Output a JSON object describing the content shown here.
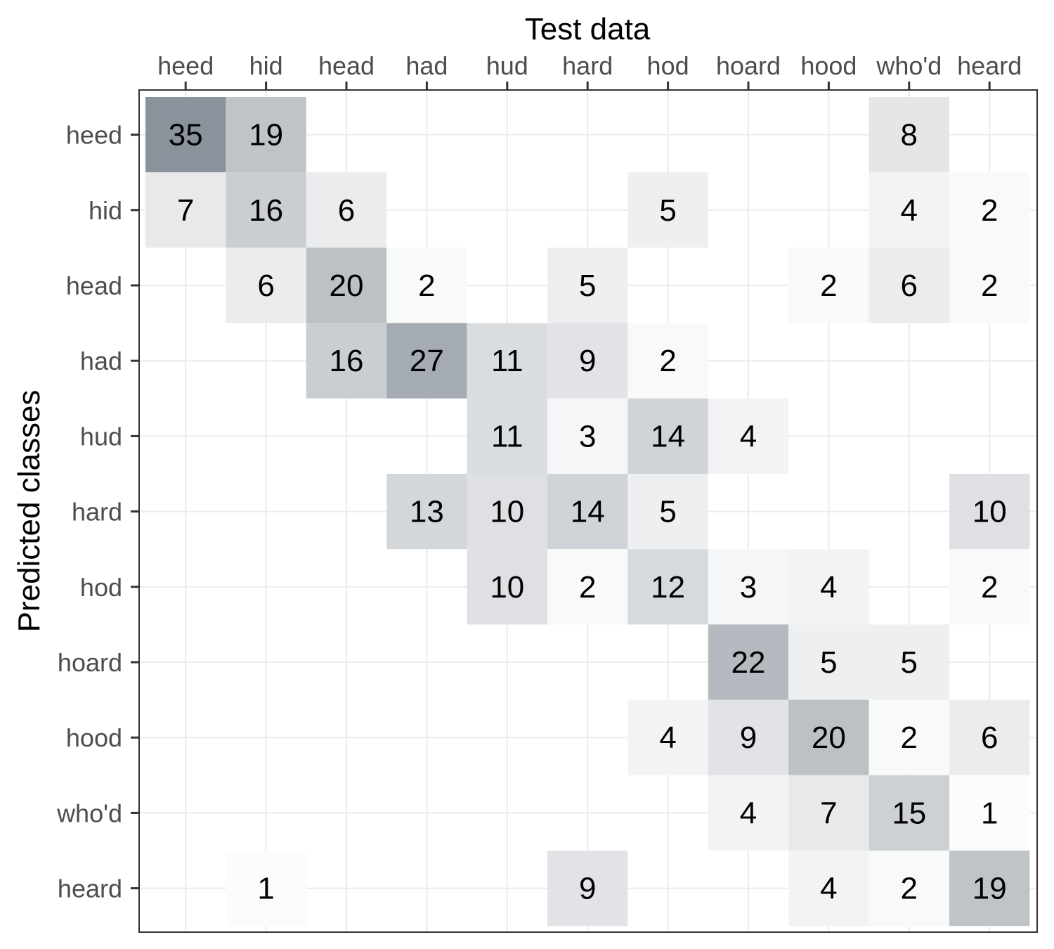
{
  "chart_data": {
    "type": "heatmap",
    "xlabel": "Test data",
    "ylabel": "Predicted classes",
    "x_position": "top",
    "x_categories": [
      "heed",
      "hid",
      "head",
      "had",
      "hud",
      "hard",
      "hod",
      "hoard",
      "hood",
      "who'd",
      "heard"
    ],
    "y_categories": [
      "heed",
      "hid",
      "head",
      "had",
      "hud",
      "hard",
      "hod",
      "hoard",
      "hood",
      "who'd",
      "heard"
    ],
    "cells": [
      {
        "x": "heed",
        "y": "heed",
        "value": 35
      },
      {
        "x": "hid",
        "y": "heed",
        "value": 19
      },
      {
        "x": "who'd",
        "y": "heed",
        "value": 8
      },
      {
        "x": "heed",
        "y": "hid",
        "value": 7
      },
      {
        "x": "hid",
        "y": "hid",
        "value": 16
      },
      {
        "x": "head",
        "y": "hid",
        "value": 6
      },
      {
        "x": "hod",
        "y": "hid",
        "value": 5
      },
      {
        "x": "who'd",
        "y": "hid",
        "value": 4
      },
      {
        "x": "heard",
        "y": "hid",
        "value": 2
      },
      {
        "x": "hid",
        "y": "head",
        "value": 6
      },
      {
        "x": "head",
        "y": "head",
        "value": 20
      },
      {
        "x": "had",
        "y": "head",
        "value": 2
      },
      {
        "x": "hard",
        "y": "head",
        "value": 5
      },
      {
        "x": "hood",
        "y": "head",
        "value": 2
      },
      {
        "x": "who'd",
        "y": "head",
        "value": 6
      },
      {
        "x": "heard",
        "y": "head",
        "value": 2
      },
      {
        "x": "head",
        "y": "had",
        "value": 16
      },
      {
        "x": "had",
        "y": "had",
        "value": 27
      },
      {
        "x": "hud",
        "y": "had",
        "value": 11
      },
      {
        "x": "hard",
        "y": "had",
        "value": 9
      },
      {
        "x": "hod",
        "y": "had",
        "value": 2
      },
      {
        "x": "hud",
        "y": "hud",
        "value": 11
      },
      {
        "x": "hard",
        "y": "hud",
        "value": 3
      },
      {
        "x": "hod",
        "y": "hud",
        "value": 14
      },
      {
        "x": "hoard",
        "y": "hud",
        "value": 4
      },
      {
        "x": "had",
        "y": "hard",
        "value": 13
      },
      {
        "x": "hud",
        "y": "hard",
        "value": 10
      },
      {
        "x": "hard",
        "y": "hard",
        "value": 14
      },
      {
        "x": "hod",
        "y": "hard",
        "value": 5
      },
      {
        "x": "heard",
        "y": "hard",
        "value": 10
      },
      {
        "x": "hud",
        "y": "hod",
        "value": 10
      },
      {
        "x": "hard",
        "y": "hod",
        "value": 2
      },
      {
        "x": "hod",
        "y": "hod",
        "value": 12
      },
      {
        "x": "hoard",
        "y": "hod",
        "value": 3
      },
      {
        "x": "hood",
        "y": "hod",
        "value": 4
      },
      {
        "x": "heard",
        "y": "hod",
        "value": 2
      },
      {
        "x": "hoard",
        "y": "hoard",
        "value": 22
      },
      {
        "x": "hood",
        "y": "hoard",
        "value": 5
      },
      {
        "x": "who'd",
        "y": "hoard",
        "value": 5
      },
      {
        "x": "hod",
        "y": "hood",
        "value": 4
      },
      {
        "x": "hoard",
        "y": "hood",
        "value": 9
      },
      {
        "x": "hood",
        "y": "hood",
        "value": 20
      },
      {
        "x": "who'd",
        "y": "hood",
        "value": 2
      },
      {
        "x": "heard",
        "y": "hood",
        "value": 6
      },
      {
        "x": "hoard",
        "y": "who'd",
        "value": 4
      },
      {
        "x": "hood",
        "y": "who'd",
        "value": 7
      },
      {
        "x": "who'd",
        "y": "who'd",
        "value": 15
      },
      {
        "x": "heard",
        "y": "who'd",
        "value": 1
      },
      {
        "x": "hid",
        "y": "heard",
        "value": 1
      },
      {
        "x": "hard",
        "y": "heard",
        "value": 9
      },
      {
        "x": "hood",
        "y": "heard",
        "value": 4
      },
      {
        "x": "who'd",
        "y": "heard",
        "value": 2
      },
      {
        "x": "heard",
        "y": "heard",
        "value": 19
      }
    ],
    "value_range": [
      0,
      35
    ],
    "color_low": "#ffffff",
    "color_high": "#8a929c",
    "grid": true,
    "legend": "none"
  }
}
